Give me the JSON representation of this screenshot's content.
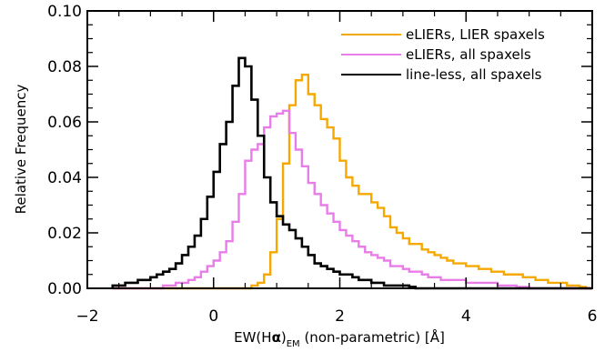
{
  "chart_data": {
    "type": "line",
    "title": "",
    "xlabel_parts": [
      "EW(H",
      "α",
      ")",
      "EM",
      " (non-parametric) [Å]"
    ],
    "ylabel": "Relative Frequency",
    "xlim": [
      -2,
      6
    ],
    "ylim": [
      0,
      0.1
    ],
    "x_ticks": [
      -2,
      0,
      2,
      4,
      6
    ],
    "x_tick_labels": [
      "−2",
      "0",
      "2",
      "4",
      "6"
    ],
    "y_ticks": [
      0,
      0.02,
      0.04,
      0.06,
      0.08,
      0.1
    ],
    "y_tick_labels": [
      "0.00",
      "0.02",
      "0.04",
      "0.06",
      "0.08",
      "0.10"
    ],
    "grid": false,
    "legend_position": "top-right",
    "bin_width": 0.1,
    "series": [
      {
        "name": "eLIERs, LIER spaxels",
        "color": "#f5a800",
        "bin_start": -1.6,
        "values": [
          0,
          0,
          0,
          0,
          0,
          0,
          0,
          0,
          0,
          0,
          0,
          0,
          0,
          0,
          0,
          0,
          0,
          0,
          0,
          0,
          0,
          0,
          0.001,
          0.002,
          0.005,
          0.013,
          0.025,
          0.045,
          0.066,
          0.075,
          0.077,
          0.07,
          0.066,
          0.061,
          0.058,
          0.054,
          0.046,
          0.04,
          0.037,
          0.034,
          0.034,
          0.031,
          0.029,
          0.026,
          0.022,
          0.02,
          0.018,
          0.016,
          0.016,
          0.014,
          0.013,
          0.012,
          0.011,
          0.01,
          0.009,
          0.009,
          0.008,
          0.008,
          0.007,
          0.007,
          0.006,
          0.006,
          0.005,
          0.005,
          0.005,
          0.004,
          0.004,
          0.003,
          0.003,
          0.002,
          0.002,
          0.002,
          0.001,
          0.001,
          0.0005,
          0
        ]
      },
      {
        "name": "eLIERs, all spaxels",
        "color": "#e87de8",
        "bin_start": -1.6,
        "values": [
          0,
          0,
          0,
          0,
          0,
          0,
          0,
          0,
          0.001,
          0.001,
          0.002,
          0.002,
          0.003,
          0.004,
          0.006,
          0.008,
          0.01,
          0.013,
          0.017,
          0.024,
          0.034,
          0.046,
          0.05,
          0.052,
          0.058,
          0.062,
          0.063,
          0.064,
          0.056,
          0.05,
          0.044,
          0.038,
          0.034,
          0.03,
          0.027,
          0.024,
          0.021,
          0.019,
          0.017,
          0.015,
          0.013,
          0.012,
          0.011,
          0.01,
          0.008,
          0.008,
          0.007,
          0.006,
          0.006,
          0.005,
          0.004,
          0.004,
          0.003,
          0.003,
          0.003,
          0.003,
          0.002,
          0.002,
          0.002,
          0.002,
          0.002,
          0.001,
          0.001,
          0.001,
          0.0005,
          0.0005,
          0,
          0,
          0,
          0,
          0,
          0,
          0,
          0,
          0,
          0
        ]
      },
      {
        "name": "line-less, all spaxels",
        "color": "#000000",
        "bin_start": -1.6,
        "values": [
          0.001,
          0.001,
          0.002,
          0.002,
          0.003,
          0.003,
          0.004,
          0.005,
          0.006,
          0.007,
          0.009,
          0.012,
          0.015,
          0.019,
          0.025,
          0.033,
          0.042,
          0.052,
          0.06,
          0.073,
          0.083,
          0.08,
          0.068,
          0.055,
          0.04,
          0.031,
          0.026,
          0.023,
          0.021,
          0.018,
          0.015,
          0.012,
          0.009,
          0.008,
          0.007,
          0.006,
          0.005,
          0.005,
          0.004,
          0.003,
          0.003,
          0.002,
          0.002,
          0.001,
          0.001,
          0.001,
          0.001,
          0.0005,
          0,
          0,
          0,
          0,
          0,
          0,
          0,
          0,
          0,
          0,
          0,
          0,
          0,
          0,
          0,
          0,
          0,
          0,
          0,
          0,
          0,
          0,
          0,
          0,
          0,
          0,
          0,
          0
        ]
      }
    ]
  }
}
